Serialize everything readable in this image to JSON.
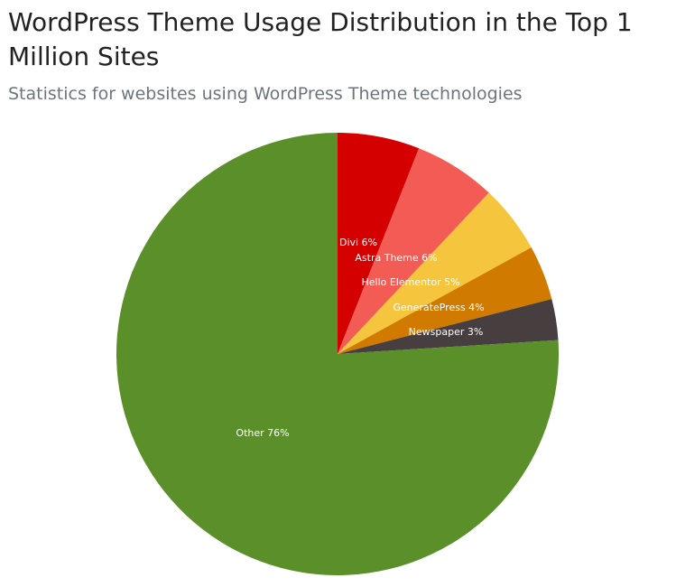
{
  "chart_data": {
    "type": "pie",
    "title": "WordPress Theme Usage Distribution in the Top 1 Million Sites",
    "subtitle": "Statistics for websites using WordPress Theme technologies",
    "slices": [
      {
        "label": "Divi",
        "value": 6,
        "display": "Divi 6%",
        "color": "#d40000"
      },
      {
        "label": "Astra Theme",
        "value": 6,
        "display": "Astra Theme 6%",
        "color": "#f25c54"
      },
      {
        "label": "Hello Elementor",
        "value": 5,
        "display": "Hello Elementor 5%",
        "color": "#f4c53d"
      },
      {
        "label": "GeneratePress",
        "value": 4,
        "display": "GeneratePress 4%",
        "color": "#d17a00"
      },
      {
        "label": "Newspaper",
        "value": 3,
        "display": "Newspaper 3%",
        "color": "#473e3f"
      },
      {
        "label": "Other",
        "value": 76,
        "display": "Other 76%",
        "color": "#5a8f29"
      }
    ],
    "start_angle_deg": 0,
    "direction": "clockwise"
  }
}
